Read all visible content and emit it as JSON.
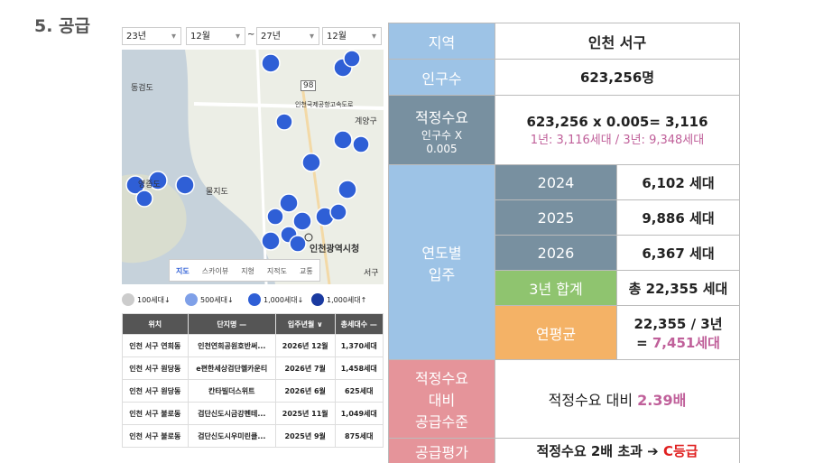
{
  "title": "5. 공급",
  "filters": [
    "23년",
    "12월",
    "~",
    "27년",
    "12월"
  ],
  "map": {
    "labels": [
      "동검도",
      "영종도",
      "물지도",
      "계양구",
      "인천광역시청",
      "서구",
      "98",
      "인천국제공항고속도로"
    ],
    "controls": [
      "지도",
      "스카이뷰",
      "지형",
      "지적도",
      "교통"
    ]
  },
  "legend": [
    "100세대↓",
    "500세대↓",
    "1,000세대↓",
    "1,000세대↑"
  ],
  "complex_table": {
    "headers": [
      "위치",
      "단지명 —",
      "입주년월 ∨",
      "총세대수 —"
    ],
    "rows": [
      [
        "인천 서구 연희동",
        "인천연희공원호반써...",
        "2026년 12월",
        "1,370세대"
      ],
      [
        "인천 서구 원당동",
        "e편한세상검단헬카운티",
        "2026년 7월",
        "1,458세대"
      ],
      [
        "인천 서구 원당동",
        "칸타빌더스위트",
        "2026년 6월",
        "625세대"
      ],
      [
        "인천 서구 불로동",
        "검단신도시금강펜테...",
        "2025년 11월",
        "1,049세대"
      ],
      [
        "인천 서구 불로동",
        "검단신도시우미린클...",
        "2025년 9월",
        "875세대"
      ]
    ]
  },
  "summary": {
    "region": {
      "label": "지역",
      "value": "인천 서구"
    },
    "population": {
      "label": "인구수",
      "value": "623,256명"
    },
    "demand": {
      "label": [
        "적정수요",
        "인구수 X",
        "0.005"
      ],
      "formula": "623,256 x 0.005= 3,116",
      "detail": "1년: 3,116세대 / 3년: 9,348세대"
    },
    "supply": {
      "label": [
        "연도별",
        "입주"
      ],
      "years": [
        {
          "year": "2024",
          "value": "6,102 세대"
        },
        {
          "year": "2025",
          "value": "9,886 세대"
        },
        {
          "year": "2026",
          "value": "6,367 세대"
        }
      ],
      "total": {
        "label": "3년 합계",
        "value": "총 22,355 세대"
      },
      "average": {
        "label": "연평균",
        "value": [
          "22,355 / 3년",
          "= ",
          "7,451세대"
        ]
      }
    },
    "level": {
      "label": [
        "적정수요",
        "대비",
        "공급수준"
      ],
      "value": [
        "적정수요 대비 ",
        "2.39배"
      ]
    },
    "rating": {
      "label": "공급평가",
      "value": [
        "적정수요 2배 초과 ➔ ",
        "C등급"
      ]
    }
  }
}
